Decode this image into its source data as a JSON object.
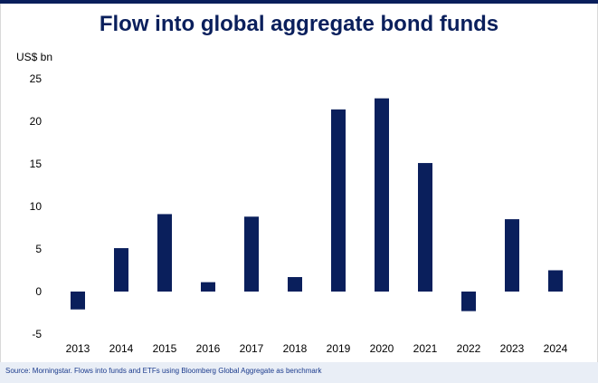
{
  "title": "Flow into global aggregate bond funds",
  "unit_label": "US$ bn",
  "source_note": "Source: Morningstar. Flows into funds and ETFs using Bloomberg Global Aggregate as benchmark",
  "colors": {
    "bar": "#0a1f5c",
    "title": "#0a1f5c",
    "source_text": "#1a3a8c",
    "source_bg": "#e9eef6",
    "accent_rule": "#0a1f5c"
  },
  "chart_data": {
    "type": "bar",
    "title": "Flow into global aggregate bond funds",
    "ylabel": "US$ bn",
    "xlabel": "",
    "categories": [
      "2013",
      "2014",
      "2015",
      "2016",
      "2017",
      "2018",
      "2019",
      "2020",
      "2021",
      "2022",
      "2023",
      "2024"
    ],
    "values": [
      -2.1,
      5.1,
      9.1,
      1.1,
      8.8,
      1.7,
      21.4,
      22.7,
      15.1,
      -2.3,
      8.5,
      2.5
    ],
    "ylim": [
      -5,
      25
    ],
    "yticks": [
      -5,
      0,
      5,
      10,
      15,
      20,
      25
    ],
    "ytick_labels": [
      "-5",
      "0",
      "5",
      "10",
      "15",
      "20",
      "25"
    ],
    "grid": false,
    "legend": "none"
  }
}
